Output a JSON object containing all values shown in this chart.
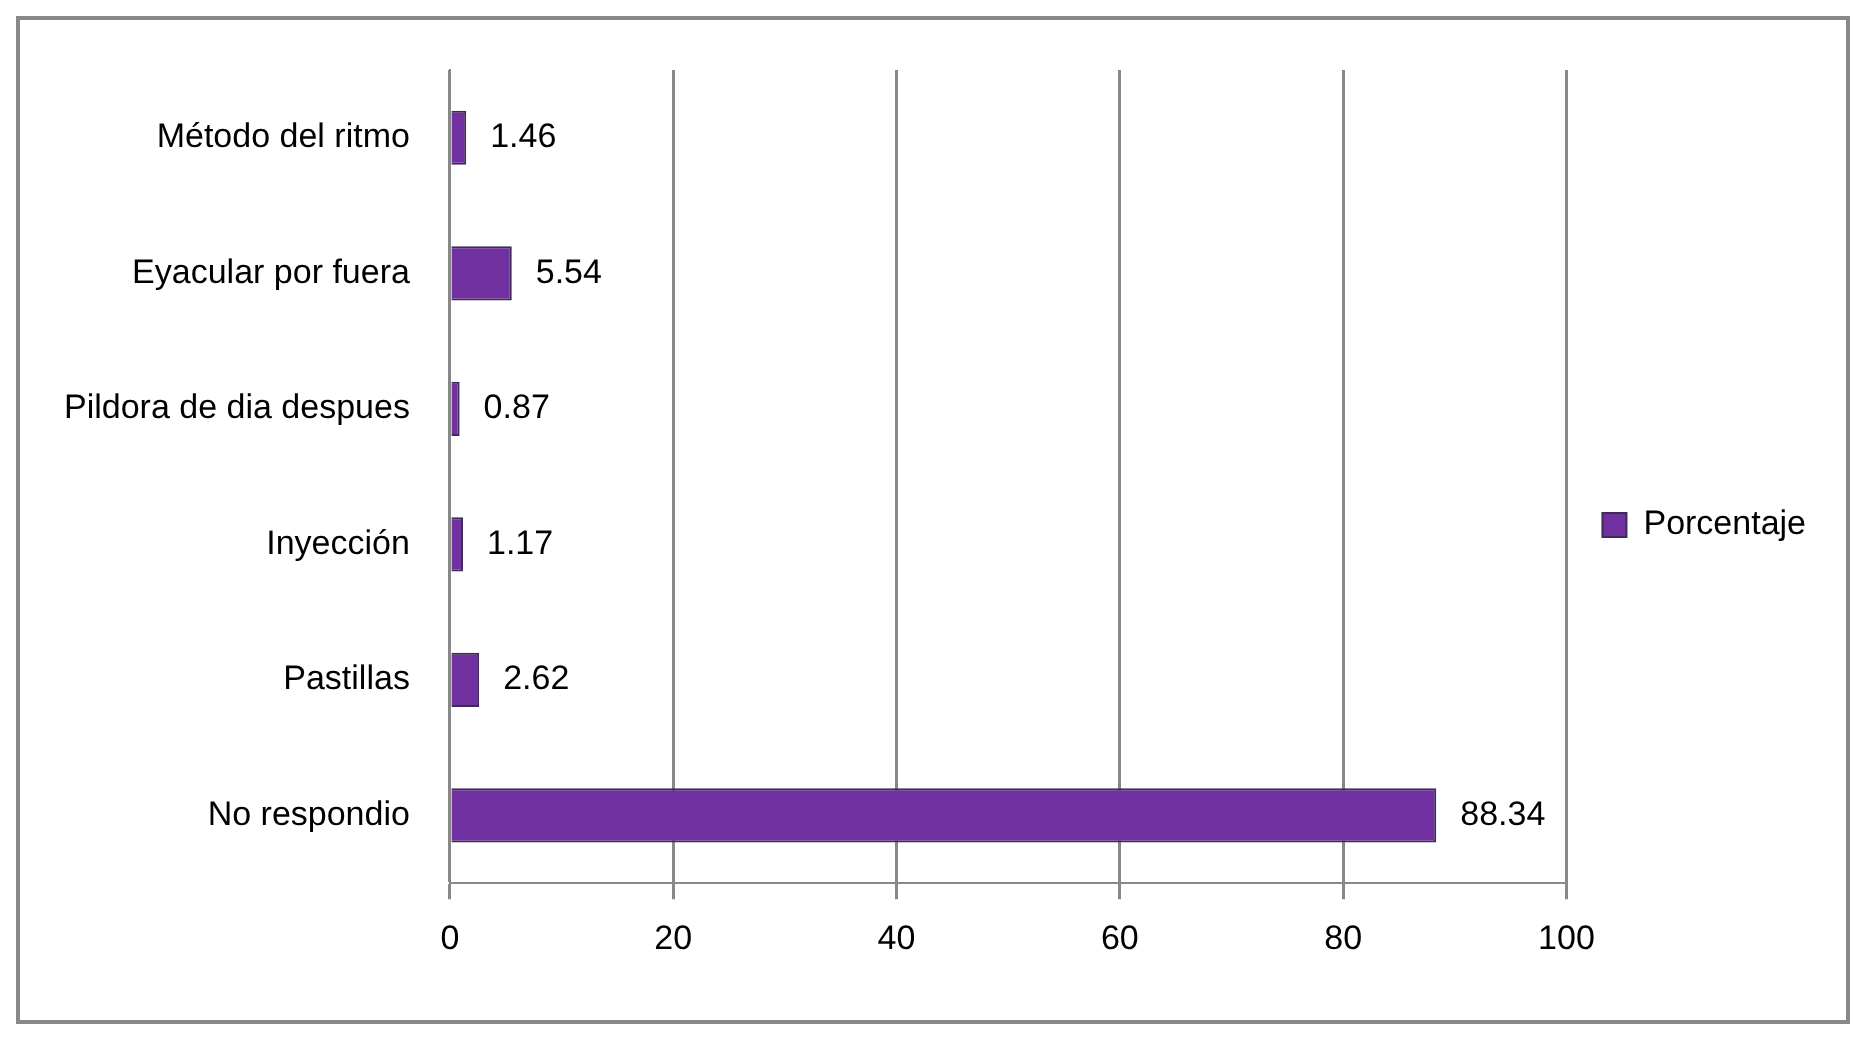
{
  "chart_data": {
    "type": "bar",
    "orientation": "horizontal",
    "categories": [
      "Método del ritmo",
      "Eyacular por fuera",
      "Pildora de dia despues",
      "Inyección",
      "Pastillas",
      "No respondio"
    ],
    "series": [
      {
        "name": "Porcentaje",
        "color": "#7030a0",
        "values": [
          1.46,
          5.54,
          0.87,
          1.17,
          2.62,
          88.34
        ]
      }
    ],
    "xlim": [
      0,
      100
    ],
    "xticks": [
      0,
      20,
      40,
      60,
      80,
      100
    ],
    "grid": "x",
    "legend": "right",
    "data_labels": true
  }
}
